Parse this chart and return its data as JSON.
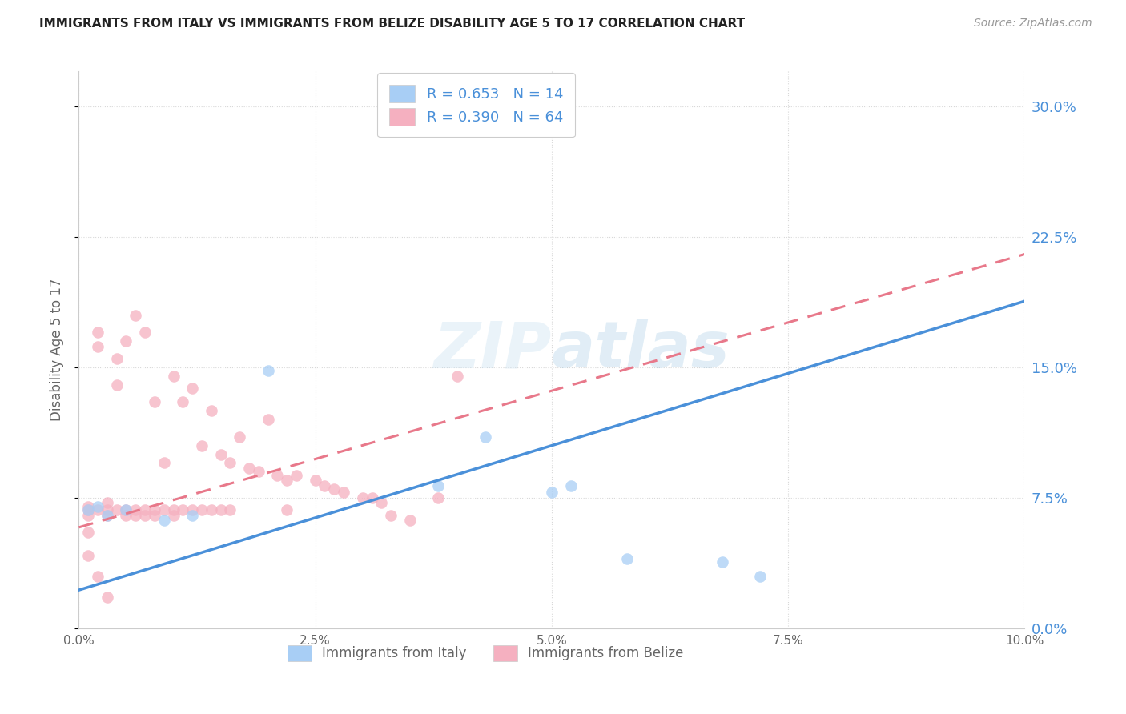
{
  "title": "IMMIGRANTS FROM ITALY VS IMMIGRANTS FROM BELIZE DISABILITY AGE 5 TO 17 CORRELATION CHART",
  "source": "Source: ZipAtlas.com",
  "ylabel": "Disability Age 5 to 17",
  "xmin": 0.0,
  "xmax": 0.1,
  "ymin": 0.0,
  "ymax": 0.32,
  "legend_italy": "R = 0.653   N = 14",
  "legend_belize": "R = 0.390   N = 64",
  "color_italy": "#a8cef5",
  "color_belize": "#f5b0c0",
  "color_italy_line": "#4a90d9",
  "color_belize_line": "#e8788a",
  "italy_x": [
    0.001,
    0.002,
    0.003,
    0.005,
    0.009,
    0.012,
    0.02,
    0.038,
    0.043,
    0.05,
    0.052,
    0.058,
    0.068,
    0.072
  ],
  "italy_y": [
    0.068,
    0.07,
    0.065,
    0.068,
    0.062,
    0.065,
    0.148,
    0.082,
    0.11,
    0.078,
    0.082,
    0.04,
    0.038,
    0.03
  ],
  "belize_x": [
    0.001,
    0.001,
    0.001,
    0.002,
    0.002,
    0.002,
    0.003,
    0.003,
    0.003,
    0.004,
    0.004,
    0.004,
    0.005,
    0.005,
    0.005,
    0.006,
    0.006,
    0.006,
    0.007,
    0.007,
    0.007,
    0.008,
    0.008,
    0.008,
    0.009,
    0.009,
    0.01,
    0.01,
    0.01,
    0.011,
    0.011,
    0.012,
    0.012,
    0.013,
    0.013,
    0.014,
    0.014,
    0.015,
    0.015,
    0.016,
    0.016,
    0.017,
    0.018,
    0.019,
    0.02,
    0.021,
    0.022,
    0.022,
    0.023,
    0.025,
    0.026,
    0.027,
    0.028,
    0.03,
    0.031,
    0.032,
    0.033,
    0.035,
    0.038,
    0.04,
    0.001,
    0.001,
    0.002,
    0.003
  ],
  "belize_y": [
    0.07,
    0.068,
    0.065,
    0.17,
    0.162,
    0.068,
    0.072,
    0.068,
    0.065,
    0.155,
    0.14,
    0.068,
    0.165,
    0.068,
    0.065,
    0.18,
    0.068,
    0.065,
    0.17,
    0.068,
    0.065,
    0.13,
    0.068,
    0.065,
    0.095,
    0.068,
    0.145,
    0.068,
    0.065,
    0.13,
    0.068,
    0.138,
    0.068,
    0.105,
    0.068,
    0.125,
    0.068,
    0.1,
    0.068,
    0.095,
    0.068,
    0.11,
    0.092,
    0.09,
    0.12,
    0.088,
    0.085,
    0.068,
    0.088,
    0.085,
    0.082,
    0.08,
    0.078,
    0.075,
    0.075,
    0.072,
    0.065,
    0.062,
    0.075,
    0.145,
    0.055,
    0.042,
    0.03,
    0.018
  ],
  "italy_line_x": [
    0.0,
    0.1
  ],
  "italy_line_y": [
    0.022,
    0.188
  ],
  "belize_line_x": [
    0.0,
    0.1
  ],
  "belize_line_y": [
    0.058,
    0.215
  ],
  "watermark": "ZIPatlas",
  "grid_color": "#d8d8d8",
  "bg_color": "#ffffff",
  "title_color": "#222222",
  "source_color": "#999999",
  "right_axis_color": "#4a90d9",
  "label_color": "#666666"
}
